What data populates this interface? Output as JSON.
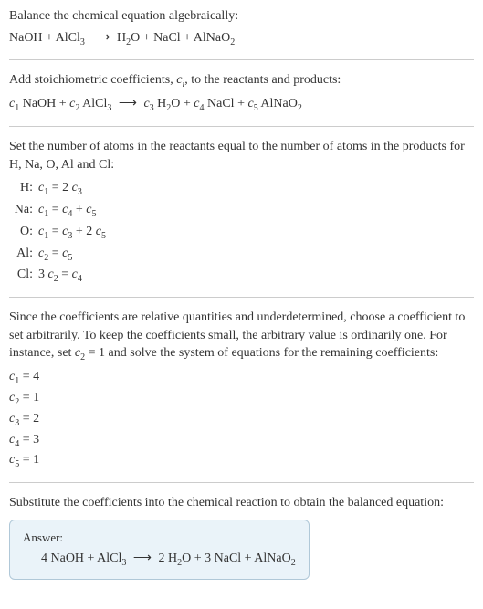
{
  "colors": {
    "text": "#333333",
    "hr": "#cccccc",
    "answer_bg": "#eaf3f9",
    "answer_border": "#b0c8d8",
    "body_bg": "#ffffff"
  },
  "typography": {
    "body_fontsize": 14,
    "sub_fontsize": 10,
    "answer_label_fontsize": 13,
    "font_family": "Georgia, Times New Roman, serif"
  },
  "section1": {
    "intro": "Balance the chemical equation algebraically:",
    "equation_html": "NaOH + AlCl<sub>3</sub> <span class='arrow'>⟶</span> H<sub>2</sub>O + NaCl + AlNaO<sub>2</sub>"
  },
  "section2": {
    "intro_html": "Add stoichiometric coefficients, <i>c<span class='sub-i'>i</span></i>, to the reactants and products:",
    "equation_html": "<i>c</i><sub>1</sub> NaOH + <i>c</i><sub>2</sub> AlCl<sub>3</sub> <span class='arrow'>⟶</span> <i>c</i><sub>3</sub> H<sub>2</sub>O + <i>c</i><sub>4</sub> NaCl + <i>c</i><sub>5</sub> AlNaO<sub>2</sub>"
  },
  "section3": {
    "intro": "Set the number of atoms in the reactants equal to the number of atoms in the products for H, Na, O, Al and Cl:",
    "rows": [
      {
        "label": "H:",
        "eq_html": "<i>c</i><sub>1</sub> = 2 <i>c</i><sub>3</sub>"
      },
      {
        "label": "Na:",
        "eq_html": "<i>c</i><sub>1</sub> = <i>c</i><sub>4</sub> + <i>c</i><sub>5</sub>"
      },
      {
        "label": "O:",
        "eq_html": "<i>c</i><sub>1</sub> = <i>c</i><sub>3</sub> + 2 <i>c</i><sub>5</sub>"
      },
      {
        "label": "Al:",
        "eq_html": "<i>c</i><sub>2</sub> = <i>c</i><sub>5</sub>"
      },
      {
        "label": "Cl:",
        "eq_html": "3 <i>c</i><sub>2</sub> = <i>c</i><sub>4</sub>"
      }
    ]
  },
  "section4": {
    "intro_html": "Since the coefficients are relative quantities and underdetermined, choose a coefficient to set arbitrarily. To keep the coefficients small, the arbitrary value is ordinarily one. For instance, set <i>c</i><sub>2</sub> = 1 and solve the system of equations for the remaining coefficients:",
    "coeffs": [
      {
        "html": "<i>c</i><sub>1</sub> = 4"
      },
      {
        "html": "<i>c</i><sub>2</sub> = 1"
      },
      {
        "html": "<i>c</i><sub>3</sub> = 2"
      },
      {
        "html": "<i>c</i><sub>4</sub> = 3"
      },
      {
        "html": "<i>c</i><sub>5</sub> = 1"
      }
    ]
  },
  "section5": {
    "intro": "Substitute the coefficients into the chemical reaction to obtain the balanced equation:",
    "answer_label": "Answer:",
    "answer_html": "4 NaOH + AlCl<sub>3</sub> <span class='arrow'>⟶</span> 2 H<sub>2</sub>O + 3 NaCl + AlNaO<sub>2</sub>"
  }
}
